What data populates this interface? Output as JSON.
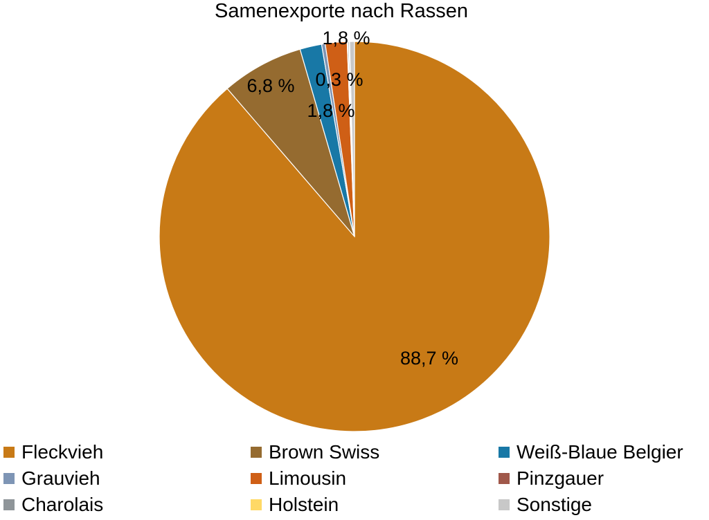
{
  "chart_data": {
    "type": "pie",
    "title": "Samenexporte nach Rassen",
    "slices": [
      {
        "name": "Fleckvieh",
        "value": 88.7,
        "label": "88,7 %",
        "color": "#c87a16"
      },
      {
        "name": "Brown Swiss",
        "value": 6.8,
        "label": "6,8 %",
        "color": "#956b30"
      },
      {
        "name": "Weiß-Blaue Belgier",
        "value": 1.8,
        "label": "1,8 %",
        "color": "#1878a6"
      },
      {
        "name": "Grauvieh",
        "value": 0.3,
        "label": "0,3 %",
        "color": "#7e95b5"
      },
      {
        "name": "Limousin",
        "value": 1.8,
        "label": "1,8 %",
        "color": "#cf5f16"
      },
      {
        "name": "Pinzgauer",
        "value": 0.05,
        "label": "",
        "color": "#a0584a"
      },
      {
        "name": "Charolais",
        "value": 0.1,
        "label": "",
        "color": "#8f9599"
      },
      {
        "name": "Holstein",
        "value": 0.05,
        "label": "",
        "color": "#ffd966"
      },
      {
        "name": "Sonstige",
        "value": 0.4,
        "label": "",
        "color": "#c8c8c8"
      }
    ],
    "legend_position": "bottom"
  }
}
